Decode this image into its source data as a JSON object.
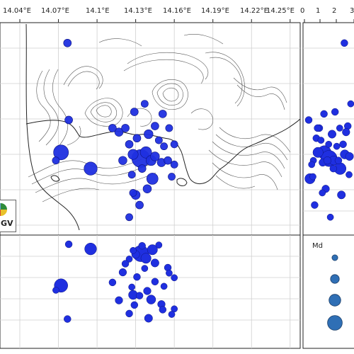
{
  "top_axis": {
    "lon_ticks": [
      "14.04°E",
      "14.07°E",
      "14.1°E",
      "14.13°E",
      "14.16°E",
      "14.19°E",
      "14.22°E",
      "14.25°E"
    ],
    "side_ticks": [
      "0",
      "1",
      "2",
      "3"
    ]
  },
  "logo": {
    "text": "GV"
  },
  "legend": {
    "title": "Md",
    "sizes": [
      0.5,
      1.0,
      1.5,
      2.0
    ]
  },
  "colors": {
    "event": "#1f2fe0",
    "event_stroke": "#0d1480",
    "legend_fill": "#2f6fb5",
    "coast": "#222222",
    "contour": "#555555",
    "grid": "#cfcfcf"
  },
  "events": [
    {
      "lon": 14.078,
      "lat": 40.842,
      "md": 0.6
    },
    {
      "lon": 14.072,
      "lat": 40.826,
      "md": 1.8
    },
    {
      "lon": 14.095,
      "lat": 40.818,
      "md": 1.5
    },
    {
      "lon": 14.068,
      "lat": 40.822,
      "md": 0.5
    },
    {
      "lon": 14.134,
      "lat": 40.823,
      "md": 2.3
    },
    {
      "lon": 14.128,
      "lat": 40.825,
      "md": 1.0
    },
    {
      "lon": 14.138,
      "lat": 40.826,
      "md": 1.2
    },
    {
      "lon": 14.142,
      "lat": 40.822,
      "md": 1.0
    },
    {
      "lon": 14.145,
      "lat": 40.824,
      "md": 0.8
    },
    {
      "lon": 14.15,
      "lat": 40.821,
      "md": 0.7
    },
    {
      "lon": 14.155,
      "lat": 40.822,
      "md": 0.6
    },
    {
      "lon": 14.16,
      "lat": 40.82,
      "md": 0.5
    },
    {
      "lon": 14.12,
      "lat": 40.822,
      "md": 0.7
    },
    {
      "lon": 14.125,
      "lat": 40.83,
      "md": 0.6
    },
    {
      "lon": 14.131,
      "lat": 40.833,
      "md": 0.6
    },
    {
      "lon": 14.14,
      "lat": 40.835,
      "md": 0.8
    },
    {
      "lon": 14.145,
      "lat": 40.839,
      "md": 0.6
    },
    {
      "lon": 14.148,
      "lat": 40.832,
      "md": 0.5
    },
    {
      "lon": 14.152,
      "lat": 40.829,
      "md": 0.5
    },
    {
      "lon": 14.143,
      "lat": 40.813,
      "md": 1.2
    },
    {
      "lon": 14.139,
      "lat": 40.808,
      "md": 0.7
    },
    {
      "lon": 14.13,
      "lat": 40.805,
      "md": 0.8
    },
    {
      "lon": 14.133,
      "lat": 40.8,
      "md": 0.6
    },
    {
      "lon": 14.125,
      "lat": 40.794,
      "md": 0.5
    },
    {
      "lon": 14.117,
      "lat": 40.836,
      "md": 0.7
    },
    {
      "lon": 14.122,
      "lat": 40.838,
      "md": 0.6
    },
    {
      "lon": 14.129,
      "lat": 40.846,
      "md": 0.6
    },
    {
      "lon": 14.137,
      "lat": 40.85,
      "md": 0.5
    },
    {
      "lon": 14.151,
      "lat": 40.845,
      "md": 0.6
    },
    {
      "lon": 14.156,
      "lat": 40.838,
      "md": 0.5
    },
    {
      "lon": 14.158,
      "lat": 40.814,
      "md": 0.5
    },
    {
      "lon": 14.16,
      "lat": 40.83,
      "md": 0.5
    },
    {
      "lon": 14.077,
      "lat": 40.88,
      "md": 0.6
    },
    {
      "lon": 14.112,
      "lat": 40.838,
      "md": 0.6
    },
    {
      "lon": 14.135,
      "lat": 40.818,
      "md": 0.6
    },
    {
      "lon": 14.127,
      "lat": 40.815,
      "md": 0.5
    },
    {
      "lon": 14.128,
      "lat": 40.806,
      "md": 0.5
    }
  ]
}
